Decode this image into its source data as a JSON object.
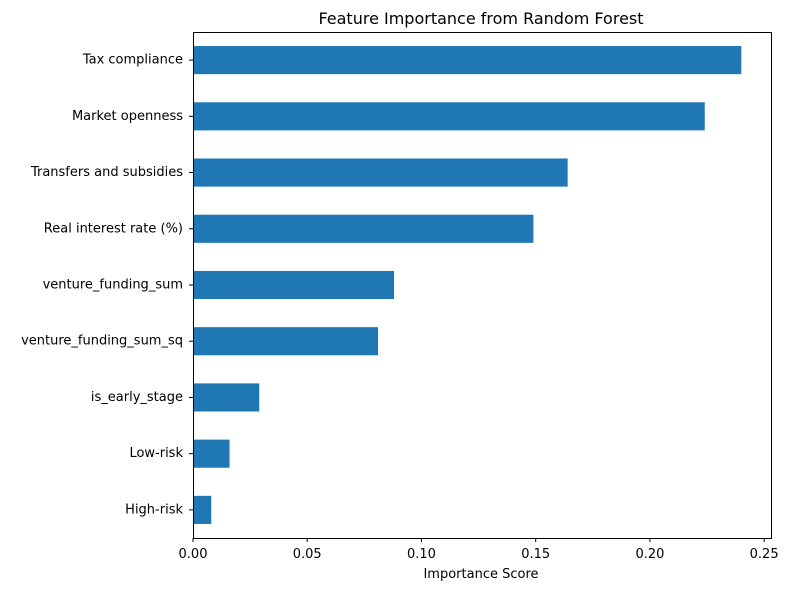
{
  "chart_data": {
    "type": "bar",
    "orientation": "horizontal",
    "title": "Feature Importance from Random Forest",
    "xlabel": "Importance Score",
    "ylabel": "",
    "xlim": [
      0,
      0.253
    ],
    "xticks": [
      0.0,
      0.05,
      0.1,
      0.15,
      0.2,
      0.25
    ],
    "xtick_labels": [
      "0.00",
      "0.05",
      "0.10",
      "0.15",
      "0.20",
      "0.25"
    ],
    "categories": [
      "Tax compliance",
      "Market openness",
      "Transfers and subsidies",
      "Real interest rate (%)",
      "venture_funding_sum",
      "venture_funding_sum_sq",
      "is_early_stage",
      "Low-risk",
      "High-risk"
    ],
    "values": [
      0.24,
      0.224,
      0.164,
      0.149,
      0.088,
      0.081,
      0.029,
      0.016,
      0.008
    ],
    "bar_color": "#1f77b4",
    "grid": false,
    "legend": "none"
  }
}
